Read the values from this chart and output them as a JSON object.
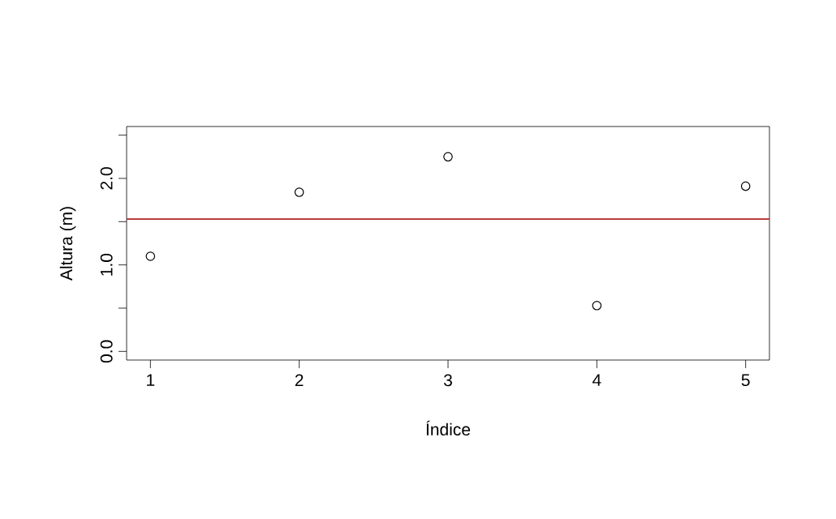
{
  "chart_data": {
    "type": "scatter",
    "xlabel": "Índice",
    "ylabel": "Altura (m)",
    "x": [
      1,
      2,
      3,
      4,
      5
    ],
    "series": [
      {
        "color": "#000000",
        "values": [
          1.1,
          1.84,
          2.25,
          0.53,
          1.91
        ]
      }
    ],
    "marker": "circle",
    "grid": false,
    "xlim": [
      0.84,
      5.16
    ],
    "ylim": [
      -0.1,
      2.6
    ],
    "xticks": [
      1,
      2,
      3,
      4,
      5
    ],
    "yticks": [
      {
        "value": 0,
        "label": "0.0"
      },
      {
        "value": 0.5,
        "label": null
      },
      {
        "value": 1,
        "label": "1.0"
      },
      {
        "value": 1.5,
        "label": null
      },
      {
        "value": 2,
        "label": "2.0"
      },
      {
        "value": 2.5,
        "label": null
      }
    ],
    "ref_lines": [
      {
        "axis": "y",
        "value": 1.53,
        "color": "#b22222"
      }
    ]
  }
}
